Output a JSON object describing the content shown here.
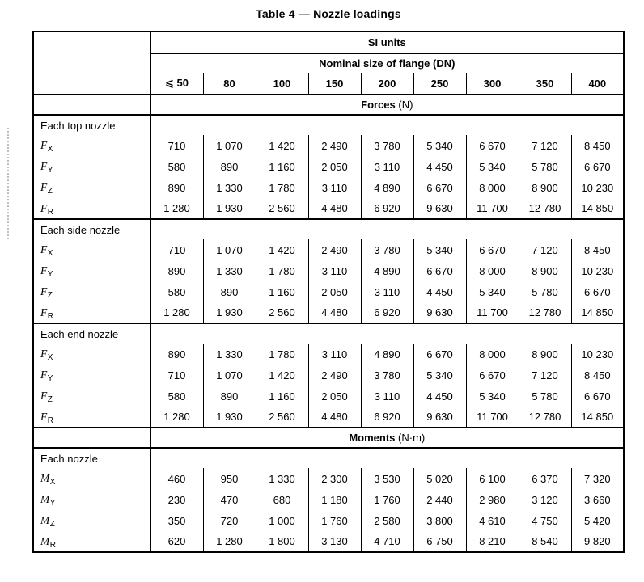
{
  "title": "Table 4 — Nozzle loadings",
  "table": {
    "si_units_label": "SI units",
    "flange_size_label": "Nominal size of flange (DN)",
    "columns": [
      "⩽ 50",
      "80",
      "100",
      "150",
      "200",
      "250",
      "300",
      "350",
      "400"
    ],
    "bands": [
      {
        "name": "Forces",
        "unit": " (N)",
        "sections": [
          0,
          1,
          2
        ]
      },
      {
        "name": "Moments",
        "unit": " (N·m)",
        "sections": [
          3
        ]
      }
    ],
    "sections": [
      {
        "label": "Each top nozzle",
        "rows": [
          {
            "symbol": "F",
            "subscript": "X",
            "values": [
              "710",
              "1 070",
              "1 420",
              "2 490",
              "3 780",
              "5 340",
              "6 670",
              "7 120",
              "8 450"
            ]
          },
          {
            "symbol": "F",
            "subscript": "Y",
            "values": [
              "580",
              "890",
              "1 160",
              "2 050",
              "3 110",
              "4 450",
              "5 340",
              "5 780",
              "6 670"
            ]
          },
          {
            "symbol": "F",
            "subscript": "Z",
            "values": [
              "890",
              "1 330",
              "1 780",
              "3 110",
              "4 890",
              "6 670",
              "8 000",
              "8 900",
              "10 230"
            ]
          },
          {
            "symbol": "F",
            "subscript": "R",
            "values": [
              "1 280",
              "1 930",
              "2 560",
              "4 480",
              "6 920",
              "9 630",
              "11 700",
              "12 780",
              "14 850"
            ]
          }
        ]
      },
      {
        "label": "Each side nozzle",
        "rows": [
          {
            "symbol": "F",
            "subscript": "X",
            "values": [
              "710",
              "1 070",
              "1 420",
              "2 490",
              "3 780",
              "5 340",
              "6 670",
              "7 120",
              "8 450"
            ]
          },
          {
            "symbol": "F",
            "subscript": "Y",
            "values": [
              "890",
              "1 330",
              "1 780",
              "3 110",
              "4 890",
              "6 670",
              "8 000",
              "8 900",
              "10 230"
            ]
          },
          {
            "symbol": "F",
            "subscript": "Z",
            "values": [
              "580",
              "890",
              "1 160",
              "2 050",
              "3 110",
              "4 450",
              "5 340",
              "5 780",
              "6 670"
            ]
          },
          {
            "symbol": "F",
            "subscript": "R",
            "values": [
              "1 280",
              "1 930",
              "2 560",
              "4 480",
              "6 920",
              "9 630",
              "11 700",
              "12 780",
              "14 850"
            ]
          }
        ]
      },
      {
        "label": "Each end nozzle",
        "rows": [
          {
            "symbol": "F",
            "subscript": "X",
            "values": [
              "890",
              "1 330",
              "1 780",
              "3 110",
              "4 890",
              "6 670",
              "8 000",
              "8 900",
              "10 230"
            ]
          },
          {
            "symbol": "F",
            "subscript": "Y",
            "values": [
              "710",
              "1 070",
              "1 420",
              "2 490",
              "3 780",
              "5 340",
              "6 670",
              "7 120",
              "8 450"
            ]
          },
          {
            "symbol": "F",
            "subscript": "Z",
            "values": [
              "580",
              "890",
              "1 160",
              "2 050",
              "3 110",
              "4 450",
              "5 340",
              "5 780",
              "6 670"
            ]
          },
          {
            "symbol": "F",
            "subscript": "R",
            "values": [
              "1 280",
              "1 930",
              "2 560",
              "4 480",
              "6 920",
              "9 630",
              "11 700",
              "12 780",
              "14 850"
            ]
          }
        ]
      },
      {
        "label": "Each nozzle",
        "rows": [
          {
            "symbol": "M",
            "subscript": "X",
            "values": [
              "460",
              "950",
              "1 330",
              "2 300",
              "3 530",
              "5 020",
              "6 100",
              "6 370",
              "7 320"
            ]
          },
          {
            "symbol": "M",
            "subscript": "Y",
            "values": [
              "230",
              "470",
              "680",
              "1 180",
              "1 760",
              "2 440",
              "2 980",
              "3 120",
              "3 660"
            ]
          },
          {
            "symbol": "M",
            "subscript": "Z",
            "values": [
              "350",
              "720",
              "1 000",
              "1 760",
              "2 580",
              "3 800",
              "4 610",
              "4 750",
              "5 420"
            ]
          },
          {
            "symbol": "M",
            "subscript": "R",
            "values": [
              "620",
              "1 280",
              "1 800",
              "3 130",
              "4 710",
              "6 750",
              "8 210",
              "8 540",
              "9 820"
            ]
          }
        ]
      }
    ]
  }
}
